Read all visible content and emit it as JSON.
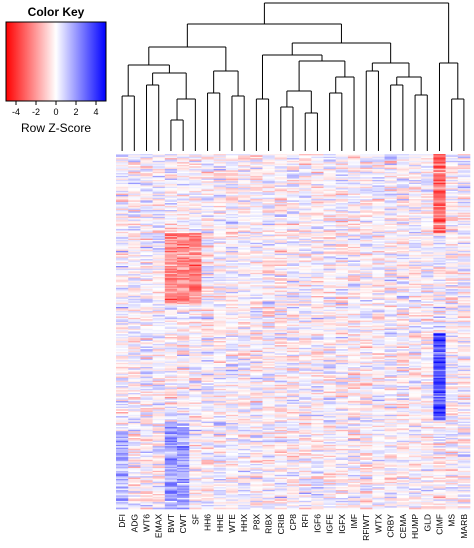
{
  "chart_data": {
    "type": "heatmap",
    "color_key": {
      "title": "Color Key",
      "label": "Row Z-Score",
      "ticks": [
        "-4",
        "-2",
        "0",
        "2",
        "4"
      ],
      "range": [
        -5,
        5
      ],
      "colors": {
        "low": "#ff0000",
        "mid": "#ffffff",
        "high": "#0000ff"
      }
    },
    "columns": [
      "DFI",
      "ADG",
      "WT6",
      "EMAX",
      "BWT",
      "CWT",
      "SF",
      "HH6",
      "HHE",
      "WTE",
      "HHX",
      "P8X",
      "RIBX",
      "CRIB",
      "CP8",
      "RFI",
      "IGF6",
      "IGFE",
      "IGFX",
      "IMF",
      "RFIWT",
      "WTX",
      "CRBY",
      "CEMA",
      "HUMP",
      "GLD",
      "CIMF",
      "MS",
      "MARB"
    ],
    "column_dendrogram": "present",
    "rows": "many (unlabeled)"
  }
}
